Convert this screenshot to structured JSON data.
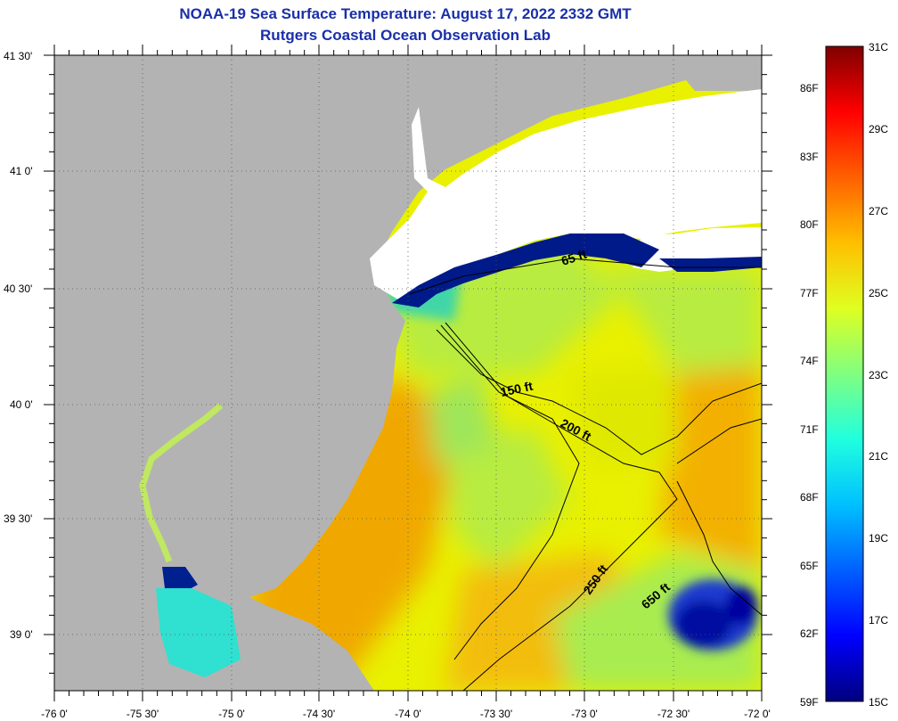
{
  "title": {
    "line1": "NOAA-19 Sea Surface Temperature:  August 17, 2022 2332 GMT",
    "line2": "Rutgers Coastal Ocean Observation Lab"
  },
  "axes": {
    "lon_ticks": [
      "-76 0'",
      "-75 30'",
      "-75 0'",
      "-74 30'",
      "-74 0'",
      "-73 30'",
      "-73 0'",
      "-72 30'",
      "-72 0'"
    ],
    "lat_ticks": [
      "41 30'",
      "41 0'",
      "40 30'",
      "40 0'",
      "39 30'",
      "39 0'"
    ]
  },
  "colorbar": {
    "celsius": [
      "31C",
      "29C",
      "27C",
      "25C",
      "23C",
      "21C",
      "19C",
      "17C",
      "15C"
    ],
    "fahrenheit": [
      "86F",
      "83F",
      "80F",
      "77F",
      "74F",
      "71F",
      "68F",
      "65F",
      "62F",
      "59F"
    ],
    "colors": [
      "#00007f",
      "#0000ff",
      "#0060ff",
      "#00c0ff",
      "#20ffdf",
      "#80ff80",
      "#dfff20",
      "#ffbf00",
      "#ff6000",
      "#ff0000",
      "#7f0000"
    ]
  },
  "contours": [
    "65 ft",
    "150 ft",
    "200 ft",
    "250 ft",
    "650 ft"
  ],
  "colors": {
    "land": "#b3b3b3",
    "cloud": "#ffffff",
    "title": "#1a2fa8"
  }
}
